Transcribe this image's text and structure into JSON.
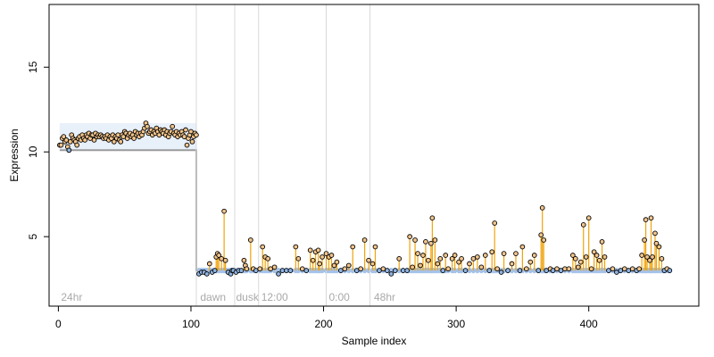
{
  "chart_data": {
    "type": "scatter",
    "title": "",
    "xlabel": "Sample index",
    "ylabel": "Expression",
    "xlim": [
      -7,
      483
    ],
    "ylim": [
      0.9,
      18.7
    ],
    "x_ticks": [
      0,
      100,
      200,
      300,
      400
    ],
    "y_ticks": [
      5,
      10,
      15
    ],
    "grid": false,
    "threshold": 3,
    "segment_boundaries": [
      104,
      133,
      151,
      202,
      235
    ],
    "segments": [
      {
        "label": "24hr",
        "x": 2
      },
      {
        "label": "dawn",
        "x": 107
      },
      {
        "label": "dusk",
        "x": 134
      },
      {
        "label": "12:00",
        "x": 153
      },
      {
        "label": "0:00",
        "x": 204
      },
      {
        "label": "48hr",
        "x": 238
      }
    ],
    "points": [
      [
        1,
        10.4
      ],
      [
        2,
        10.4
      ],
      [
        3,
        10.8
      ],
      [
        4,
        10.9
      ],
      [
        5,
        10.6
      ],
      [
        6,
        10.7
      ],
      [
        7,
        10.3
      ],
      [
        8,
        10.1
      ],
      [
        9,
        10.6
      ],
      [
        10,
        11.0
      ],
      [
        11,
        10.8
      ],
      [
        12,
        10.7
      ],
      [
        13,
        10.6
      ],
      [
        14,
        10.4
      ],
      [
        15,
        10.8
      ],
      [
        16,
        10.9
      ],
      [
        17,
        10.7
      ],
      [
        18,
        11.0
      ],
      [
        19,
        10.8
      ],
      [
        20,
        10.7
      ],
      [
        21,
        11.0
      ],
      [
        22,
        10.9
      ],
      [
        23,
        11.1
      ],
      [
        24,
        10.8
      ],
      [
        25,
        11.0
      ],
      [
        26,
        11.0
      ],
      [
        27,
        10.7
      ],
      [
        28,
        11.1
      ],
      [
        29,
        10.9
      ],
      [
        30,
        11.0
      ],
      [
        31,
        10.9
      ],
      [
        32,
        11.0
      ],
      [
        33,
        10.9
      ],
      [
        34,
        10.8
      ],
      [
        35,
        10.9
      ],
      [
        36,
        10.8
      ],
      [
        37,
        11.0
      ],
      [
        38,
        10.7
      ],
      [
        39,
        10.9
      ],
      [
        40,
        10.8
      ],
      [
        41,
        11.0
      ],
      [
        42,
        10.6
      ],
      [
        43,
        10.9
      ],
      [
        44,
        10.8
      ],
      [
        45,
        11.0
      ],
      [
        46,
        10.7
      ],
      [
        47,
        10.6
      ],
      [
        48,
        11.0
      ],
      [
        49,
        10.9
      ],
      [
        50,
        11.2
      ],
      [
        51,
        11.1
      ],
      [
        52,
        10.8
      ],
      [
        53,
        11.0
      ],
      [
        54,
        11.1
      ],
      [
        55,
        10.9
      ],
      [
        56,
        11.0
      ],
      [
        57,
        10.8
      ],
      [
        58,
        11.2
      ],
      [
        59,
        11.0
      ],
      [
        60,
        11.1
      ],
      [
        61,
        10.9
      ],
      [
        62,
        11.1
      ],
      [
        63,
        11.0
      ],
      [
        64,
        11.2
      ],
      [
        65,
        11.4
      ],
      [
        66,
        11.7
      ],
      [
        67,
        11.5
      ],
      [
        68,
        11.1
      ],
      [
        69,
        11.2
      ],
      [
        70,
        11.3
      ],
      [
        71,
        11.0
      ],
      [
        72,
        11.2
      ],
      [
        73,
        11.1
      ],
      [
        74,
        11.4
      ],
      [
        75,
        11.2
      ],
      [
        76,
        11.0
      ],
      [
        77,
        11.3
      ],
      [
        78,
        11.2
      ],
      [
        79,
        11.1
      ],
      [
        80,
        11.3
      ],
      [
        81,
        11.0
      ],
      [
        82,
        11.2
      ],
      [
        83,
        10.9
      ],
      [
        84,
        11.1
      ],
      [
        85,
        11.2
      ],
      [
        86,
        11.5
      ],
      [
        87,
        11.1
      ],
      [
        88,
        11.0
      ],
      [
        89,
        11.2
      ],
      [
        90,
        10.9
      ],
      [
        91,
        11.1
      ],
      [
        92,
        11.0
      ],
      [
        93,
        11.2
      ],
      [
        94,
        11.0
      ],
      [
        95,
        10.9
      ],
      [
        96,
        11.3
      ],
      [
        97,
        10.4
      ],
      [
        98,
        10.8
      ],
      [
        99,
        11.0
      ],
      [
        100,
        11.2
      ],
      [
        101,
        10.6
      ],
      [
        102,
        10.9
      ],
      [
        103,
        11.1
      ],
      [
        104,
        11.0
      ],
      [
        106,
        2.8
      ],
      [
        108,
        2.9
      ],
      [
        110,
        2.9
      ],
      [
        112,
        2.8
      ],
      [
        114,
        3.4
      ],
      [
        116,
        2.9
      ],
      [
        118,
        3.0
      ],
      [
        119,
        3.8
      ],
      [
        120,
        4.0
      ],
      [
        121,
        3.9
      ],
      [
        123,
        3.7
      ],
      [
        125,
        6.5
      ],
      [
        126,
        3.6
      ],
      [
        128,
        2.9
      ],
      [
        130,
        2.8
      ],
      [
        131,
        3.0
      ],
      [
        132,
        3.0
      ],
      [
        134,
        2.9
      ],
      [
        136,
        3.0
      ],
      [
        138,
        3.0
      ],
      [
        140,
        3.6
      ],
      [
        141,
        3.3
      ],
      [
        142,
        3.1
      ],
      [
        145,
        4.8
      ],
      [
        147,
        3.1
      ],
      [
        149,
        3.0
      ],
      [
        152,
        3.1
      ],
      [
        154,
        4.4
      ],
      [
        156,
        3.8
      ],
      [
        158,
        3.7
      ],
      [
        160,
        3.1
      ],
      [
        163,
        3.2
      ],
      [
        166,
        2.8
      ],
      [
        169,
        3.0
      ],
      [
        172,
        3.0
      ],
      [
        175,
        3.0
      ],
      [
        179,
        4.4
      ],
      [
        181,
        3.7
      ],
      [
        184,
        3.1
      ],
      [
        187,
        3.0
      ],
      [
        190,
        4.2
      ],
      [
        192,
        3.6
      ],
      [
        194,
        4.1
      ],
      [
        196,
        4.2
      ],
      [
        197,
        3.4
      ],
      [
        199,
        3.8
      ],
      [
        202,
        4.0
      ],
      [
        204,
        3.8
      ],
      [
        206,
        3.9
      ],
      [
        208,
        3.3
      ],
      [
        210,
        3.5
      ],
      [
        213,
        3.0
      ],
      [
        216,
        3.1
      ],
      [
        219,
        3.3
      ],
      [
        222,
        4.4
      ],
      [
        225,
        3.0
      ],
      [
        228,
        3.1
      ],
      [
        231,
        4.8
      ],
      [
        234,
        3.6
      ],
      [
        237,
        3.4
      ],
      [
        239,
        4.4
      ],
      [
        242,
        3.0
      ],
      [
        245,
        3.1
      ],
      [
        248,
        3.0
      ],
      [
        251,
        2.8
      ],
      [
        254,
        3.0
      ],
      [
        257,
        3.7
      ],
      [
        260,
        3.0
      ],
      [
        263,
        3.0
      ],
      [
        265,
        5.0
      ],
      [
        267,
        3.2
      ],
      [
        269,
        4.8
      ],
      [
        271,
        4.0
      ],
      [
        273,
        3.3
      ],
      [
        275,
        3.9
      ],
      [
        277,
        4.7
      ],
      [
        279,
        3.6
      ],
      [
        281,
        4.6
      ],
      [
        282,
        6.1
      ],
      [
        284,
        4.8
      ],
      [
        286,
        3.4
      ],
      [
        288,
        3.7
      ],
      [
        290,
        3.0
      ],
      [
        292,
        3.9
      ],
      [
        294,
        3.1
      ],
      [
        297,
        3.7
      ],
      [
        299,
        3.9
      ],
      [
        302,
        3.5
      ],
      [
        304,
        3.7
      ],
      [
        307,
        3.0
      ],
      [
        310,
        3.4
      ],
      [
        313,
        3.7
      ],
      [
        316,
        3.8
      ],
      [
        319,
        3.2
      ],
      [
        322,
        3.9
      ],
      [
        325,
        3.0
      ],
      [
        327,
        4.1
      ],
      [
        329,
        5.8
      ],
      [
        331,
        3.1
      ],
      [
        334,
        2.9
      ],
      [
        336,
        4.0
      ],
      [
        339,
        3.0
      ],
      [
        342,
        3.4
      ],
      [
        345,
        4.0
      ],
      [
        348,
        3.0
      ],
      [
        350,
        4.4
      ],
      [
        353,
        3.1
      ],
      [
        356,
        3.5
      ],
      [
        359,
        3.9
      ],
      [
        362,
        3.0
      ],
      [
        364,
        5.1
      ],
      [
        365,
        6.7
      ],
      [
        366,
        4.8
      ],
      [
        368,
        3.0
      ],
      [
        371,
        3.1
      ],
      [
        373,
        3.0
      ],
      [
        376,
        3.1
      ],
      [
        379,
        3.0
      ],
      [
        382,
        3.1
      ],
      [
        385,
        3.1
      ],
      [
        388,
        3.9
      ],
      [
        390,
        3.7
      ],
      [
        392,
        3.2
      ],
      [
        394,
        3.5
      ],
      [
        396,
        5.7
      ],
      [
        398,
        3.8
      ],
      [
        400,
        6.1
      ],
      [
        402,
        3.1
      ],
      [
        404,
        4.1
      ],
      [
        406,
        3.9
      ],
      [
        408,
        3.6
      ],
      [
        410,
        4.7
      ],
      [
        412,
        3.8
      ],
      [
        415,
        3.0
      ],
      [
        418,
        3.1
      ],
      [
        421,
        2.9
      ],
      [
        424,
        3.0
      ],
      [
        427,
        3.1
      ],
      [
        430,
        3.0
      ],
      [
        433,
        3.1
      ],
      [
        436,
        3.0
      ],
      [
        438,
        3.1
      ],
      [
        440,
        3.9
      ],
      [
        442,
        4.8
      ],
      [
        443,
        6.0
      ],
      [
        444,
        3.8
      ],
      [
        446,
        3.6
      ],
      [
        447,
        6.1
      ],
      [
        448,
        3.8
      ],
      [
        450,
        5.2
      ],
      [
        451,
        4.6
      ],
      [
        453,
        4.4
      ],
      [
        455,
        3.7
      ],
      [
        457,
        3.0
      ],
      [
        459,
        3.1
      ],
      [
        461,
        3.0
      ]
    ],
    "colors": {
      "frame": "#000000",
      "reference_band": "#a4c2eb",
      "reference_line": "#9b9b9b",
      "segment_line": "#d9d9d9",
      "segment_text": "#a9a9a9",
      "stem": "#f0a30a",
      "point_fill_high": "#f2c48b",
      "point_fill_low": "#8fb3e0",
      "point_stroke": "#000000"
    }
  }
}
